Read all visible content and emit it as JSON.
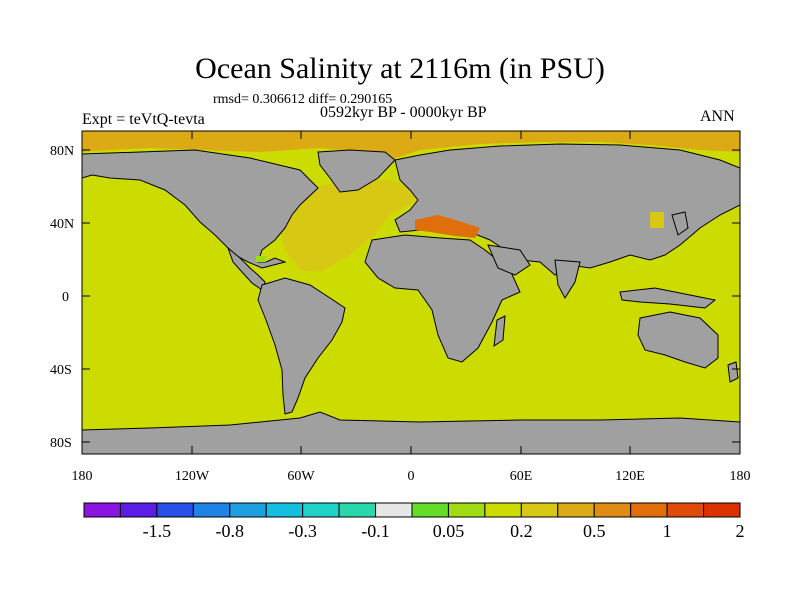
{
  "title": "Ocean Salinity at 2116m (in PSU)",
  "stats": "rmsd= 0.306612 diff= 0.290165",
  "experiment": "Expt = teVtQ-tevta",
  "period": "0592kyr BP - 0000kyr BP",
  "season": "ANN",
  "axes": {
    "y_ticks": [
      "80N",
      "40N",
      "0",
      "40S",
      "80S"
    ],
    "x_ticks": [
      "180",
      "120W",
      "60W",
      "0",
      "60E",
      "120E",
      "180"
    ]
  },
  "colorbar": {
    "colors": [
      "#8a14e0",
      "#5a1ee6",
      "#2850e8",
      "#1e82e6",
      "#1ea0e0",
      "#14bede",
      "#1ed2c8",
      "#28d7aa",
      "#e6e6e6",
      "#64dc28",
      "#a0dc14",
      "#cddc00",
      "#d7c814",
      "#dcaa14",
      "#e08c14",
      "#e06e0a",
      "#e04b0a",
      "#dc3200"
    ],
    "labels": [
      "-1.5",
      "-0.8",
      "-0.3",
      "-0.1",
      "0.05",
      "0.2",
      "0.5",
      "1",
      "2"
    ]
  },
  "legend_colors": {
    "land": "#a0a0a0",
    "ocean_base": "#cddc00",
    "arctic": "#dcaa14",
    "north_atlantic": "#d7c814",
    "mediterranean": "#e06e0a",
    "caribbean": "#a0dc14"
  }
}
